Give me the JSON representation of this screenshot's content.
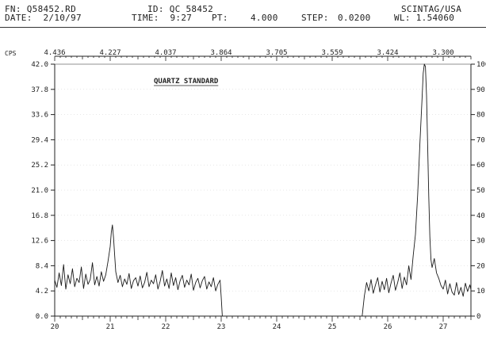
{
  "header": {
    "fn_label": "FN:",
    "fn_value": "Q58452.RD",
    "date_label": "DATE:",
    "date_value": "2/10/97",
    "id_label": "ID:",
    "id_value": "QC 58452",
    "time_label": "TIME:",
    "time_value": "9:27",
    "pt_label": "PT:",
    "pt_value": "4.000",
    "step_label": "STEP:",
    "step_value": "0.0200",
    "company": "SCINTAG/USA",
    "wl_label": "WL:",
    "wl_value": "1.54060"
  },
  "colors": {
    "ink": "#222222",
    "trace": "#1a1a1a",
    "grid": "#cfcfcf"
  },
  "chart_data": {
    "type": "line",
    "title": "QUARTZ STANDARD",
    "y_unit_label": "CPS",
    "xlim": [
      20,
      27.5
    ],
    "ylim": [
      0,
      42
    ],
    "x_ticks": [
      "20",
      "21",
      "22",
      "23",
      "24",
      "25",
      "26",
      "27"
    ],
    "y_ticks": [
      "0.0",
      "4.2",
      "8.4",
      "12.6",
      "16.8",
      "21.0",
      "25.2",
      "29.4",
      "33.6",
      "37.8",
      "42.0"
    ],
    "d_spacing_ticks": [
      {
        "at": 20.0,
        "label": "4.436"
      },
      {
        "at": 21.0,
        "label": "4.227"
      },
      {
        "at": 22.0,
        "label": "4.037"
      },
      {
        "at": 23.0,
        "label": "3.864"
      },
      {
        "at": 24.0,
        "label": "3.705"
      },
      {
        "at": 25.0,
        "label": "3.559"
      },
      {
        "at": 26.0,
        "label": "3.424"
      },
      {
        "at": 27.0,
        "label": "3.300"
      }
    ],
    "right_ticks": [
      "0",
      "10",
      "20",
      "30",
      "40",
      "50",
      "60",
      "70",
      "80",
      "90",
      "100"
    ],
    "grid": "faint",
    "series": [
      {
        "x": [
          20.0,
          20.04,
          20.08,
          20.12,
          20.16,
          20.2,
          20.24,
          20.28,
          20.32,
          20.36,
          20.4,
          20.44,
          20.48,
          20.52,
          20.56,
          20.6,
          20.64,
          20.68,
          20.72,
          20.76,
          20.8,
          20.84,
          20.88,
          20.92,
          20.96,
          21.0,
          21.02,
          21.04,
          21.06,
          21.08,
          21.1,
          21.14,
          21.18,
          21.22,
          21.26,
          21.3,
          21.34,
          21.38,
          21.42,
          21.46,
          21.5,
          21.54,
          21.58,
          21.62,
          21.66,
          21.7,
          21.74,
          21.78,
          21.82,
          21.86,
          21.9,
          21.94,
          21.98,
          22.02,
          22.06,
          22.1,
          22.14,
          22.18,
          22.22,
          22.26,
          22.3,
          22.34,
          22.38,
          22.42,
          22.46,
          22.5,
          22.54,
          22.58,
          22.62,
          22.66,
          22.7,
          22.74,
          22.78,
          22.82,
          22.86,
          22.9,
          22.94,
          22.98,
          23.0,
          23.02
        ],
        "y": [
          6.0,
          4.8,
          7.2,
          5.1,
          8.6,
          4.5,
          6.9,
          5.4,
          7.9,
          4.9,
          6.3,
          5.6,
          8.2,
          4.6,
          7.0,
          5.3,
          6.1,
          8.9,
          5.2,
          6.6,
          5.0,
          7.4,
          5.8,
          6.9,
          9.1,
          11.6,
          14.0,
          15.2,
          13.1,
          10.2,
          7.4,
          5.6,
          6.8,
          4.9,
          6.2,
          5.3,
          7.1,
          4.6,
          5.9,
          6.4,
          5.0,
          6.7,
          4.7,
          5.6,
          7.3,
          4.9,
          6.0,
          5.4,
          6.9,
          4.5,
          5.8,
          7.6,
          5.0,
          6.2,
          4.6,
          7.2,
          5.1,
          6.4,
          4.4,
          5.9,
          6.8,
          4.8,
          6.0,
          5.2,
          7.0,
          4.3,
          5.6,
          6.3,
          4.7,
          5.9,
          6.6,
          4.5,
          5.7,
          4.9,
          6.4,
          4.2,
          5.3,
          6.0,
          3.2,
          0.0
        ]
      },
      {
        "x": [
          25.54,
          25.58,
          25.62,
          25.66,
          25.7,
          25.74,
          25.78,
          25.82,
          25.86,
          25.9,
          25.94,
          25.98,
          26.02,
          26.06,
          26.1,
          26.14,
          26.18,
          26.22,
          26.26,
          26.3,
          26.34,
          26.38,
          26.42,
          26.46,
          26.5,
          26.54,
          26.58,
          26.62,
          26.64,
          26.66,
          26.68,
          26.7,
          26.72,
          26.74,
          26.76,
          26.78,
          26.8,
          26.84,
          26.88,
          26.92,
          26.96,
          27.0,
          27.04,
          27.08,
          27.12,
          27.16,
          27.2,
          27.24,
          27.28,
          27.32,
          27.36,
          27.4,
          27.44,
          27.48,
          27.5
        ],
        "y": [
          0.0,
          3.4,
          5.6,
          4.2,
          6.1,
          3.8,
          5.2,
          6.4,
          4.0,
          5.8,
          4.4,
          6.3,
          3.9,
          5.5,
          6.8,
          4.3,
          5.6,
          7.2,
          4.6,
          6.5,
          5.2,
          8.4,
          6.1,
          10.1,
          13.6,
          20.2,
          28.7,
          36.4,
          40.5,
          42.0,
          41.6,
          36.8,
          28.5,
          20.0,
          13.2,
          9.4,
          8.1,
          9.6,
          7.2,
          6.3,
          5.1,
          4.5,
          6.0,
          3.7,
          5.4,
          4.0,
          3.5,
          5.6,
          3.6,
          4.8,
          3.3,
          5.5,
          4.1,
          5.2,
          4.4
        ]
      }
    ]
  }
}
